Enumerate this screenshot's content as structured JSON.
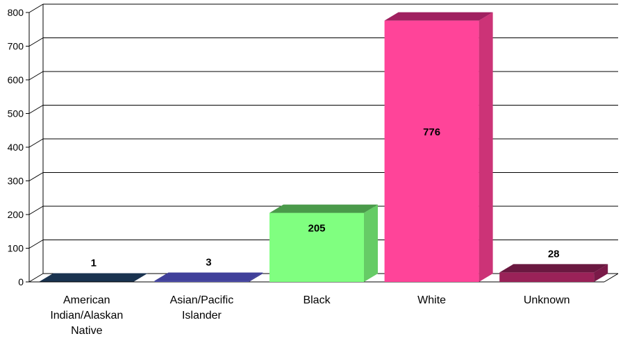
{
  "chart_data": {
    "type": "bar",
    "title": "",
    "xlabel": "",
    "ylabel": "",
    "categories": [
      "American Indian/Alaskan Native",
      "Asian/Pacific Islander",
      "Black",
      "White",
      "Unknown"
    ],
    "category_label_lines": [
      [
        "American",
        "Indian/Alaskan",
        "Native"
      ],
      [
        "Asian/Pacific",
        "Islander"
      ],
      [
        "Black"
      ],
      [
        "White"
      ],
      [
        "Unknown"
      ]
    ],
    "values": [
      1,
      3,
      205,
      776,
      28
    ],
    "data_labels": [
      "1",
      "3",
      "205",
      "776",
      "28"
    ],
    "ylim": [
      0,
      800
    ],
    "yticks": [
      0,
      100,
      200,
      300,
      400,
      500,
      600,
      700,
      800
    ],
    "grid": true,
    "legend": "none",
    "colors": {
      "front": [
        "#1f3d5a",
        "#4b4ba8",
        "#80ff80",
        "#ff4499",
        "#9a2258"
      ],
      "top": [
        "#1a3350",
        "#40409a",
        "#4a9a4a",
        "#a02060",
        "#6a1840"
      ],
      "side": [
        "#16304a",
        "#3a3a90",
        "#66cc66",
        "#cc3377",
        "#7a1a48"
      ]
    }
  }
}
